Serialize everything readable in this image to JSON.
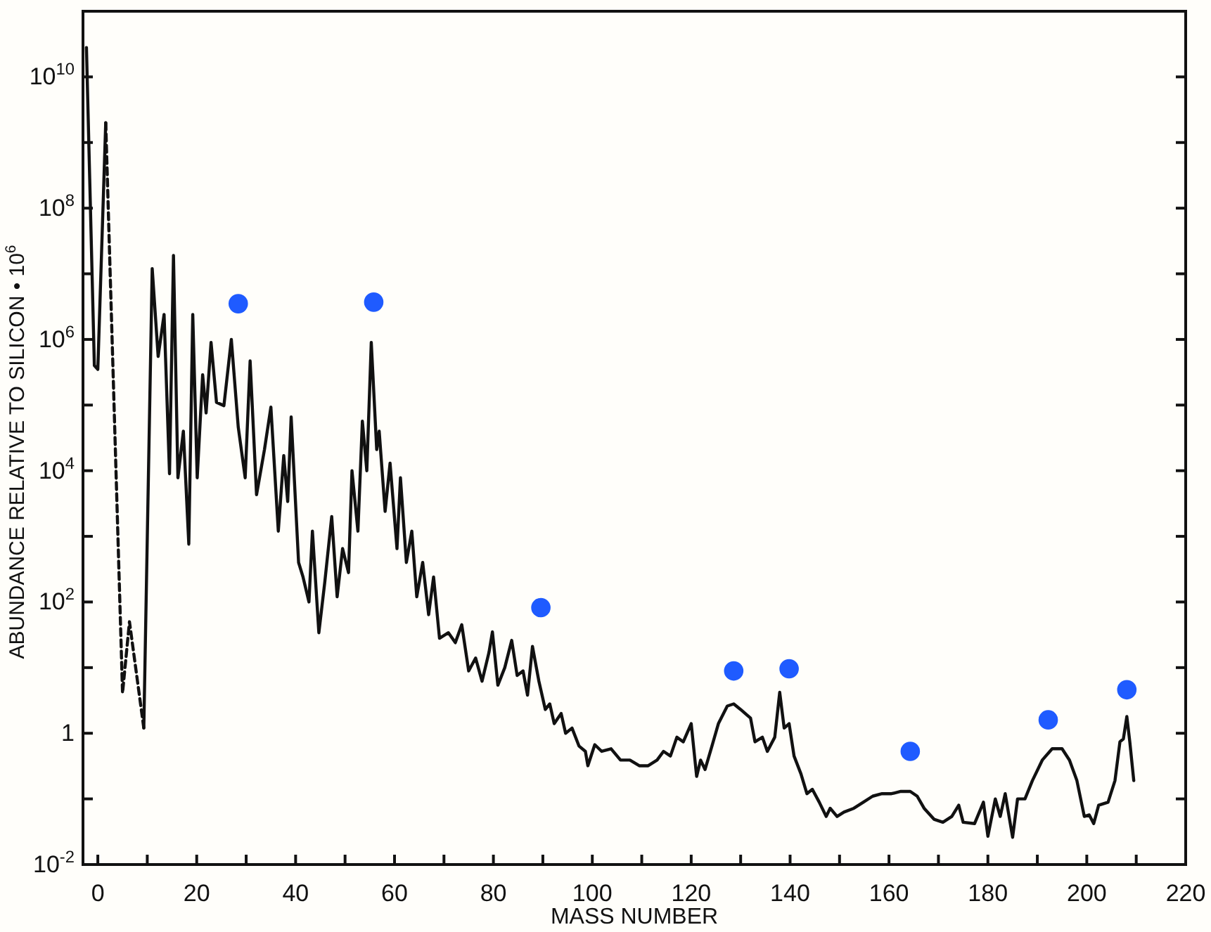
{
  "chart_data": {
    "type": "line",
    "xlabel": "MASS NUMBER",
    "ylabel": "ABUNDANCE RELATIVE TO SILICON • 10$^{6}$",
    "log": "y",
    "grid": false,
    "xlim": [
      -3,
      220
    ],
    "xticks": [
      0,
      {
        "value": 10,
        "label": null
      },
      20,
      {
        "value": 30,
        "label": null
      },
      40,
      {
        "value": 50,
        "label": null
      },
      60,
      {
        "value": 70,
        "label": null
      },
      80,
      {
        "value": 90,
        "label": null
      },
      100,
      {
        "value": 110,
        "label": null
      },
      120,
      {
        "value": 130,
        "label": null
      },
      140,
      {
        "value": 150,
        "label": null
      },
      160,
      {
        "value": 170,
        "label": null
      },
      180,
      {
        "value": 190,
        "label": null
      },
      200,
      {
        "value": 210,
        "label": null
      },
      220
    ],
    "ylim": [
      0.01,
      100000000000.0
    ],
    "yticks": [
      {
        "value": 0.01,
        "label": "10$^{-2}$"
      },
      {
        "value": 0.1,
        "label": null
      },
      1,
      {
        "value": 10,
        "label": null
      },
      {
        "value": 100,
        "label": "10$^{2}$"
      },
      {
        "value": 1000,
        "label": null
      },
      {
        "value": 10000,
        "label": "10$^{4}$"
      },
      {
        "value": 100000,
        "label": null
      },
      {
        "value": 1000000,
        "label": "10$^{6}$"
      },
      {
        "value": 10000000,
        "label": null
      },
      {
        "value": 100000000,
        "label": "10$^{8}$"
      },
      {
        "value": 1000000000,
        "label": null
      },
      {
        "value": 10000000000,
        "label": "10$^{10}$"
      }
    ],
    "series": [
      {
        "color": "#111111",
        "line_style": "solid",
        "marker": "none",
        "x": [
          -2.3,
          -0.7,
          0,
          1.6
        ],
        "values": [
          28000000000.0,
          400000.0,
          350000.0,
          2000000000.0
        ]
      },
      {
        "color": "#111111",
        "line_style": "dashed",
        "marker": "none",
        "x": [
          1.6,
          5.0,
          6.4,
          9.3
        ],
        "values": [
          2000000000.0,
          4.1,
          50,
          1.2
        ]
      },
      {
        "color": "#111111",
        "line_style": "solid",
        "marker": "none",
        "x": [
          9.3,
          11.0,
          12.2,
          13.4,
          14.5,
          15.3,
          16.2,
          17.3,
          18.4,
          19.2,
          20.1,
          21.2,
          21.9,
          22.9,
          24.0,
          25.5,
          27.0,
          28.4,
          29.8,
          30.8,
          32.1,
          33.7,
          35.0,
          36.5,
          37.6,
          38.4,
          39.1,
          40.6,
          41.5,
          42.7,
          43.4,
          44.7,
          45.9,
          47.3,
          48.4,
          49.5,
          50.7,
          51.4,
          52.6,
          53.5,
          54.4,
          55.3,
          56.4,
          56.9,
          58.1,
          59.1,
          60.5,
          61.2,
          62.4,
          63.5,
          64.5,
          65.7,
          66.9,
          67.9,
          69.1,
          70.9,
          72.3,
          73.6,
          75.0,
          76.4,
          77.7,
          79.1,
          79.8,
          80.9,
          82.3,
          83.7,
          84.8,
          86.0,
          86.9,
          87.9,
          89.2,
          90.5,
          91.4,
          92.3,
          93.7,
          94.6,
          95.9,
          97.3,
          98.6,
          99.1,
          100.5,
          101.9,
          103.8,
          105.7,
          107.6,
          109.5,
          111.3,
          113.1,
          114.4,
          115.8,
          117.1,
          118.4,
          120.0,
          121.1,
          121.9,
          122.8,
          124.2,
          125.5,
          127.3,
          128.6,
          130.0,
          132.0,
          132.9,
          134.4,
          135.4,
          136.9,
          137.9,
          138.8,
          139.8,
          140.8,
          142.2,
          143.4,
          144.5,
          145.9,
          147.3,
          148.1,
          149.5,
          150.9,
          152.9,
          154.8,
          156.7,
          158.6,
          160.5,
          162.4,
          164.3,
          165.7,
          167.1,
          169.1,
          170.9,
          172.7,
          174.1,
          175.0,
          177.3,
          179.1,
          180.0,
          181.5,
          182.5,
          183.5,
          185.0,
          186.0,
          187.5,
          189.0,
          191.0,
          193.0,
          195.0,
          196.5,
          198.0,
          199.5,
          200.5,
          201.4,
          202.4,
          204.3,
          205.7,
          206.7,
          207.4,
          208.1,
          208.7,
          209.5
        ],
        "values": [
          1.2,
          12000000.0,
          550000.0,
          2400000.0,
          9000.0,
          19000000.0,
          7800.0,
          40000.0,
          760,
          2400000.0,
          7800.0,
          290000.0,
          76000.0,
          900000.0,
          110000.0,
          98000.0,
          1000000.0,
          46000.0,
          7800.0,
          470000.0,
          4300.0,
          21000.0,
          93000.0,
          1200.0,
          17000.0,
          3400.0,
          66000.0,
          400,
          240,
          100,
          1200.0,
          34,
          200,
          2000.0,
          120,
          650,
          280,
          10000.0,
          1200.0,
          57000.0,
          10000.0,
          900000.0,
          21000.0,
          40000.0,
          2400.0,
          13000.0,
          650,
          7800.0,
          400,
          1200.0,
          120,
          400,
          64,
          240,
          28,
          34,
          24,
          45,
          8.9,
          14,
          6.2,
          17,
          35,
          5.4,
          10,
          26,
          7.6,
          8.9,
          3.8,
          21,
          6.2,
          2.3,
          2.8,
          1.4,
          2.0,
          1.0,
          1.2,
          0.64,
          0.53,
          0.32,
          0.67,
          0.53,
          0.58,
          0.39,
          0.39,
          0.32,
          0.32,
          0.39,
          0.53,
          0.45,
          0.87,
          0.74,
          1.4,
          0.22,
          0.39,
          0.28,
          0.64,
          1.4,
          2.6,
          2.8,
          2.3,
          1.7,
          0.74,
          0.87,
          0.53,
          0.87,
          4.2,
          1.2,
          1.4,
          0.45,
          0.24,
          0.12,
          0.14,
          0.089,
          0.054,
          0.072,
          0.054,
          0.063,
          0.072,
          0.089,
          0.11,
          0.12,
          0.12,
          0.13,
          0.13,
          0.11,
          0.072,
          0.049,
          0.044,
          0.054,
          0.08,
          0.044,
          0.042,
          0.089,
          0.027,
          0.1,
          0.054,
          0.12,
          0.026,
          0.1,
          0.1,
          0.19,
          0.39,
          0.58,
          0.58,
          0.39,
          0.19,
          0.054,
          0.057,
          0.042,
          0.08,
          0.089,
          0.19,
          0.74,
          0.82,
          1.8,
          0.74,
          0.19
        ]
      },
      {
        "type": "scatter",
        "color": "#1f5bff",
        "marker": "circle",
        "x": [
          28.4,
          55.8,
          89.6,
          128.6,
          139.8,
          164.3,
          192.2,
          208.1
        ],
        "values": [
          3500000.0,
          3700000.0,
          82,
          8.9,
          9.6,
          0.53,
          1.6,
          4.6
        ]
      }
    ]
  }
}
